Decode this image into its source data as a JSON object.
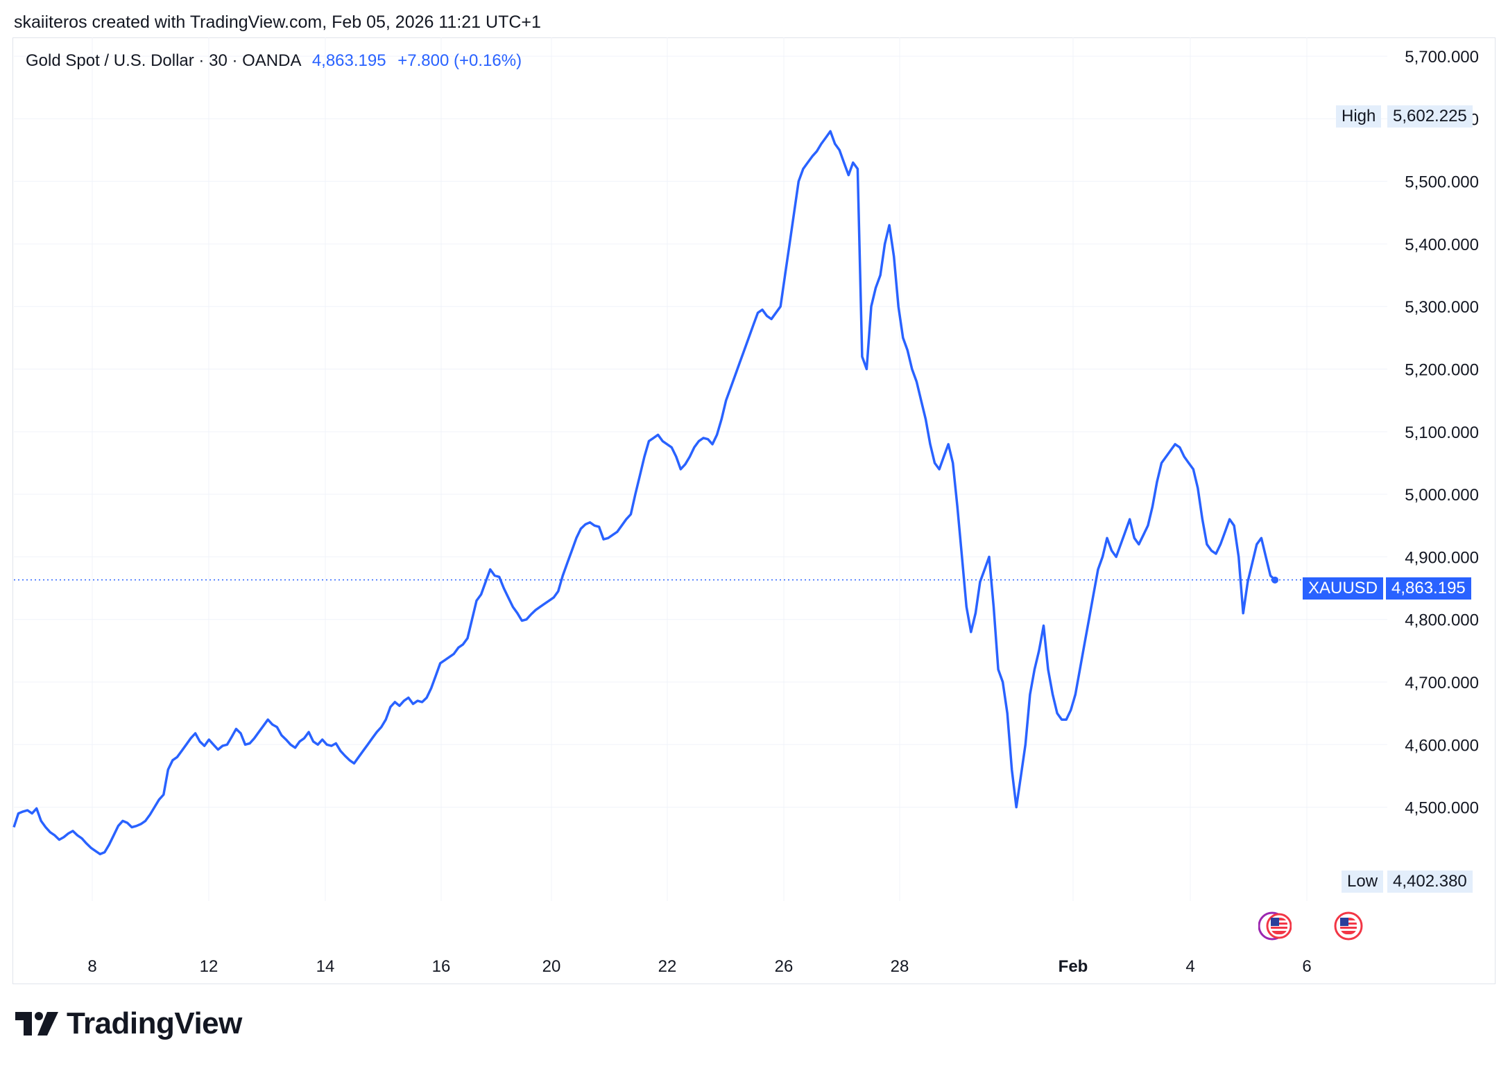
{
  "header": {
    "credit": "skaiiteros created with TradingView.com, Feb 05, 2026 11:21 UTC+1"
  },
  "legend": {
    "symbol_text": "Gold Spot / U.S. Dollar · 30 · OANDA",
    "price": "4,863.195",
    "change": "+7.800 (+0.16%)"
  },
  "markers": {
    "high_label": "High",
    "high_value": "5,602.225",
    "low_label": "Low",
    "low_value": "4,402.380",
    "current_label": "XAUUSD",
    "current_value": "4,863.195"
  },
  "footer": {
    "brand": "TradingView"
  },
  "colors": {
    "line": "#2962ff",
    "grid": "#f0f3fa",
    "text": "#131722",
    "tag_bg": "#e3eefb"
  },
  "icons": [
    "us-flag-icon",
    "us-flag-icon"
  ],
  "chart_data": {
    "type": "line",
    "title": "Gold Spot / U.S. Dollar · 30 · OANDA",
    "x_ticks": [
      "8",
      "12",
      "14",
      "16",
      "20",
      "22",
      "26",
      "28",
      "Feb",
      "4",
      "6"
    ],
    "y_ticks": [
      "4,500.000",
      "4,600.000",
      "4,700.000",
      "4,800.000",
      "4,900.000",
      "5,000.000",
      "5,100.000",
      "5,200.000",
      "5,300.000",
      "5,400.000",
      "5,500.000",
      "5,600.000",
      "5,700.000"
    ],
    "ylim": [
      4350,
      5730
    ],
    "grid": true,
    "series": [
      {
        "values": [
          4468,
          4490,
          4493,
          4495,
          4490,
          4498,
          4478,
          4468,
          4460,
          4455,
          4448,
          4452,
          4458,
          4462,
          4455,
          4450,
          4442,
          4435,
          4430,
          4425,
          4428,
          4440,
          4455,
          4470,
          4478,
          4475,
          4468,
          4470,
          4473,
          4478,
          4488,
          4500,
          4512,
          4520,
          4560,
          4575,
          4580,
          4590,
          4600,
          4610,
          4618,
          4605,
          4598,
          4608,
          4600,
          4592,
          4598,
          4600,
          4612,
          4625,
          4618,
          4600,
          4602,
          4610,
          4620,
          4630,
          4640,
          4632,
          4628,
          4615,
          4608,
          4600,
          4595,
          4605,
          4610,
          4620,
          4605,
          4600,
          4608,
          4600,
          4598,
          4602,
          4590,
          4582,
          4575,
          4570,
          4580,
          4590,
          4600,
          4610,
          4620,
          4628,
          4640,
          4660,
          4668,
          4662,
          4670,
          4675,
          4665,
          4670,
          4668,
          4675,
          4690,
          4710,
          4730,
          4735,
          4740,
          4745,
          4755,
          4760,
          4770,
          4800,
          4830,
          4840,
          4860,
          4880,
          4870,
          4868,
          4850,
          4835,
          4820,
          4810,
          4798,
          4800,
          4808,
          4815,
          4820,
          4825,
          4830,
          4835,
          4845,
          4870,
          4890,
          4910,
          4930,
          4945,
          4952,
          4955,
          4950,
          4948,
          4928,
          4930,
          4935,
          4940,
          4950,
          4960,
          4968,
          5000,
          5030,
          5060,
          5085,
          5090,
          5095,
          5085,
          5080,
          5075,
          5060,
          5040,
          5048,
          5060,
          5075,
          5085,
          5090,
          5088,
          5080,
          5095,
          5120,
          5150,
          5170,
          5190,
          5210,
          5230,
          5250,
          5270,
          5290,
          5295,
          5285,
          5280,
          5290,
          5300,
          5350,
          5400,
          5450,
          5500,
          5520,
          5530,
          5540,
          5548,
          5560,
          5570,
          5580,
          5560,
          5550,
          5530,
          5510,
          5530,
          5520,
          5220,
          5200,
          5300,
          5330,
          5350,
          5400,
          5430,
          5380,
          5300,
          5250,
          5230,
          5200,
          5180,
          5150,
          5120,
          5080,
          5050,
          5040,
          5060,
          5080,
          5050,
          4980,
          4900,
          4820,
          4780,
          4810,
          4860,
          4880,
          4900,
          4820,
          4720,
          4700,
          4650,
          4560,
          4500,
          4550,
          4600,
          4680,
          4720,
          4750,
          4790,
          4720,
          4680,
          4650,
          4640,
          4640,
          4655,
          4680,
          4720,
          4760,
          4800,
          4840,
          4880,
          4900,
          4930,
          4910,
          4900,
          4920,
          4940,
          4960,
          4930,
          4920,
          4935,
          4950,
          4980,
          5020,
          5050,
          5060,
          5070,
          5080,
          5075,
          5060,
          5050,
          5040,
          5010,
          4960,
          4920,
          4910,
          4905,
          4920,
          4940,
          4960,
          4950,
          4900,
          4810,
          4860,
          4890,
          4920,
          4930,
          4900,
          4870,
          4863
        ]
      }
    ]
  }
}
